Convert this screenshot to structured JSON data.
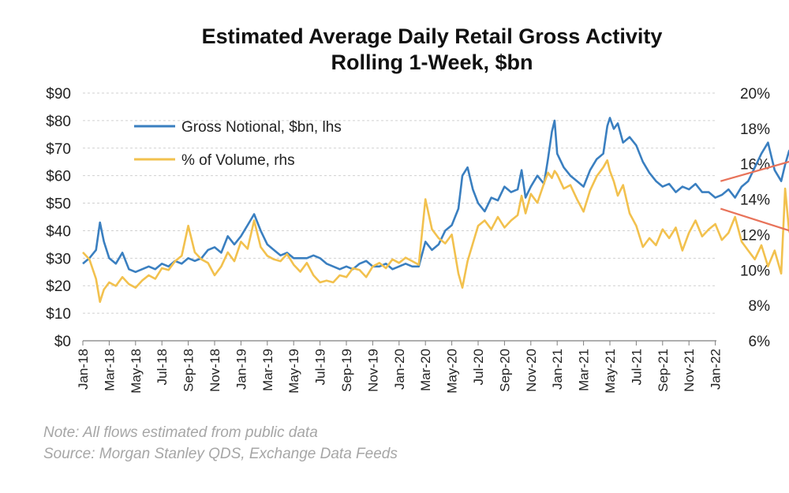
{
  "chart_data": {
    "type": "line",
    "title": "Estimated Average Daily Retail Gross Activity",
    "subtitle": "Rolling 1-Week, $bn",
    "left_axis": {
      "ylim": [
        0,
        90
      ],
      "ticks": [
        0,
        10,
        20,
        30,
        40,
        50,
        60,
        70,
        80,
        90
      ],
      "tick_labels": [
        "$0",
        "$10",
        "$20",
        "$30",
        "$40",
        "$50",
        "$60",
        "$70",
        "$80",
        "$90"
      ]
    },
    "right_axis": {
      "ylim": [
        6,
        20
      ],
      "ticks": [
        6,
        8,
        10,
        12,
        14,
        16,
        18,
        20
      ],
      "tick_labels": [
        "6%",
        "8%",
        "10%",
        "12%",
        "14%",
        "16%",
        "18%",
        "20%"
      ]
    },
    "x_ticks": [
      "Jan-18",
      "Mar-18",
      "May-18",
      "Jul-18",
      "Sep-18",
      "Nov-18",
      "Jan-19",
      "Mar-19",
      "May-19",
      "Jul-19",
      "Sep-19",
      "Nov-19",
      "Jan-20",
      "Mar-20",
      "May-20",
      "Jul-20",
      "Sep-20",
      "Nov-20",
      "Jan-21",
      "Mar-21",
      "May-21",
      "Jul-21",
      "Sep-21",
      "Nov-21",
      "Jan-22"
    ],
    "x_range_months": [
      0,
      49.2
    ],
    "grid": true,
    "legend_position": "top-left",
    "series": [
      {
        "name": "Gross Notional, $bn, lhs",
        "axis": "left",
        "color": "#3a7fc0",
        "points": [
          [
            0,
            28
          ],
          [
            0.5,
            30
          ],
          [
            1,
            33
          ],
          [
            1.3,
            43
          ],
          [
            1.6,
            36
          ],
          [
            2,
            30
          ],
          [
            2.5,
            28
          ],
          [
            3,
            32
          ],
          [
            3.5,
            26
          ],
          [
            4,
            25
          ],
          [
            4.5,
            26
          ],
          [
            5,
            27
          ],
          [
            5.5,
            26
          ],
          [
            6,
            28
          ],
          [
            6.5,
            27
          ],
          [
            7,
            29
          ],
          [
            7.5,
            28
          ],
          [
            8,
            30
          ],
          [
            8.5,
            29
          ],
          [
            9,
            30
          ],
          [
            9.5,
            33
          ],
          [
            10,
            34
          ],
          [
            10.5,
            32
          ],
          [
            11,
            38
          ],
          [
            11.5,
            35
          ],
          [
            12,
            38
          ],
          [
            12.5,
            42
          ],
          [
            13,
            46
          ],
          [
            13.5,
            40
          ],
          [
            14,
            35
          ],
          [
            14.5,
            33
          ],
          [
            15,
            31
          ],
          [
            15.5,
            32
          ],
          [
            16,
            30
          ],
          [
            16.5,
            30
          ],
          [
            17,
            30
          ],
          [
            17.5,
            31
          ],
          [
            18,
            30
          ],
          [
            18.5,
            28
          ],
          [
            19,
            27
          ],
          [
            19.5,
            26
          ],
          [
            20,
            27
          ],
          [
            20.5,
            26
          ],
          [
            21,
            28
          ],
          [
            21.5,
            29
          ],
          [
            22,
            27
          ],
          [
            22.5,
            27
          ],
          [
            23,
            28
          ],
          [
            23.5,
            26
          ],
          [
            24,
            27
          ],
          [
            24.5,
            28
          ],
          [
            25,
            27
          ],
          [
            25.5,
            27
          ],
          [
            26,
            36
          ],
          [
            26.5,
            33
          ],
          [
            27,
            35
          ],
          [
            27.5,
            40
          ],
          [
            28,
            42
          ],
          [
            28.5,
            48
          ],
          [
            28.8,
            60
          ],
          [
            29.2,
            63
          ],
          [
            29.6,
            55
          ],
          [
            30,
            50
          ],
          [
            30.5,
            47
          ],
          [
            31,
            52
          ],
          [
            31.5,
            51
          ],
          [
            32,
            56
          ],
          [
            32.5,
            54
          ],
          [
            33,
            55
          ],
          [
            33.3,
            62
          ],
          [
            33.6,
            52
          ],
          [
            34,
            56
          ],
          [
            34.5,
            60
          ],
          [
            35,
            57
          ],
          [
            35.3,
            66
          ],
          [
            35.6,
            76
          ],
          [
            35.8,
            80
          ],
          [
            36,
            68
          ],
          [
            36.5,
            63
          ],
          [
            37,
            60
          ],
          [
            37.5,
            58
          ],
          [
            38,
            56
          ],
          [
            38.5,
            62
          ],
          [
            39,
            66
          ],
          [
            39.5,
            68
          ],
          [
            39.8,
            78
          ],
          [
            40,
            81
          ],
          [
            40.3,
            77
          ],
          [
            40.6,
            79
          ],
          [
            41,
            72
          ],
          [
            41.5,
            74
          ],
          [
            42,
            71
          ],
          [
            42.5,
            65
          ],
          [
            43,
            61
          ],
          [
            43.5,
            58
          ],
          [
            44,
            56
          ],
          [
            44.5,
            57
          ],
          [
            45,
            54
          ],
          [
            45.5,
            56
          ],
          [
            46,
            55
          ],
          [
            46.5,
            57
          ],
          [
            47,
            54
          ],
          [
            47.5,
            54
          ],
          [
            48,
            52
          ],
          [
            48.5,
            53
          ],
          [
            49,
            55
          ],
          [
            49.5,
            52
          ],
          [
            50,
            56
          ],
          [
            50.5,
            58
          ],
          [
            51,
            63
          ],
          [
            51.5,
            68
          ],
          [
            52,
            72
          ],
          [
            52.5,
            62
          ],
          [
            53,
            58
          ],
          [
            53.3,
            64
          ],
          [
            53.6,
            69
          ],
          [
            54,
            71
          ],
          [
            54.3,
            72
          ]
        ]
      },
      {
        "name": "% of Volume, rhs",
        "axis": "right",
        "color": "#f2c14e",
        "points": [
          [
            0,
            11
          ],
          [
            0.5,
            10.6
          ],
          [
            1,
            9.5
          ],
          [
            1.3,
            8.2
          ],
          [
            1.6,
            8.9
          ],
          [
            2,
            9.3
          ],
          [
            2.5,
            9.1
          ],
          [
            3,
            9.6
          ],
          [
            3.5,
            9.2
          ],
          [
            4,
            9.0
          ],
          [
            4.5,
            9.4
          ],
          [
            5,
            9.7
          ],
          [
            5.5,
            9.5
          ],
          [
            6,
            10.1
          ],
          [
            6.5,
            10.0
          ],
          [
            7,
            10.5
          ],
          [
            7.5,
            10.8
          ],
          [
            8,
            12.5
          ],
          [
            8.5,
            11.0
          ],
          [
            9,
            10.6
          ],
          [
            9.5,
            10.4
          ],
          [
            10,
            9.7
          ],
          [
            10.5,
            10.2
          ],
          [
            11,
            11.0
          ],
          [
            11.5,
            10.5
          ],
          [
            12,
            11.6
          ],
          [
            12.5,
            11.2
          ],
          [
            13,
            12.8
          ],
          [
            13.5,
            11.3
          ],
          [
            14,
            10.8
          ],
          [
            14.5,
            10.6
          ],
          [
            15,
            10.5
          ],
          [
            15.5,
            10.9
          ],
          [
            16,
            10.3
          ],
          [
            16.5,
            9.9
          ],
          [
            17,
            10.4
          ],
          [
            17.5,
            9.7
          ],
          [
            18,
            9.3
          ],
          [
            18.5,
            9.4
          ],
          [
            19,
            9.3
          ],
          [
            19.5,
            9.7
          ],
          [
            20,
            9.6
          ],
          [
            20.5,
            10.1
          ],
          [
            21,
            10.0
          ],
          [
            21.5,
            9.6
          ],
          [
            22,
            10.2
          ],
          [
            22.5,
            10.4
          ],
          [
            23,
            10.1
          ],
          [
            23.5,
            10.6
          ],
          [
            24,
            10.4
          ],
          [
            24.5,
            10.7
          ],
          [
            25,
            10.5
          ],
          [
            25.5,
            10.3
          ],
          [
            26,
            14.0
          ],
          [
            26.5,
            12.3
          ],
          [
            27,
            11.8
          ],
          [
            27.5,
            11.5
          ],
          [
            28,
            12.0
          ],
          [
            28.5,
            9.8
          ],
          [
            28.8,
            9.0
          ],
          [
            29.2,
            10.5
          ],
          [
            29.6,
            11.5
          ],
          [
            30,
            12.5
          ],
          [
            30.5,
            12.8
          ],
          [
            31,
            12.3
          ],
          [
            31.5,
            13.0
          ],
          [
            32,
            12.4
          ],
          [
            32.5,
            12.8
          ],
          [
            33,
            13.1
          ],
          [
            33.3,
            14.2
          ],
          [
            33.6,
            13.2
          ],
          [
            34,
            14.3
          ],
          [
            34.5,
            13.8
          ],
          [
            35,
            14.9
          ],
          [
            35.3,
            15.5
          ],
          [
            35.6,
            15.2
          ],
          [
            35.8,
            15.6
          ],
          [
            36,
            15.4
          ],
          [
            36.5,
            14.6
          ],
          [
            37,
            14.8
          ],
          [
            37.5,
            14.0
          ],
          [
            38,
            13.3
          ],
          [
            38.5,
            14.5
          ],
          [
            39,
            15.3
          ],
          [
            39.5,
            15.8
          ],
          [
            39.8,
            16.2
          ],
          [
            40,
            15.6
          ],
          [
            40.3,
            15.0
          ],
          [
            40.6,
            14.2
          ],
          [
            41,
            14.8
          ],
          [
            41.5,
            13.2
          ],
          [
            42,
            12.5
          ],
          [
            42.5,
            11.3
          ],
          [
            43,
            11.8
          ],
          [
            43.5,
            11.4
          ],
          [
            44,
            12.3
          ],
          [
            44.5,
            11.8
          ],
          [
            45,
            12.4
          ],
          [
            45.5,
            11.1
          ],
          [
            46,
            12.1
          ],
          [
            46.5,
            12.8
          ],
          [
            47,
            11.9
          ],
          [
            47.5,
            12.3
          ],
          [
            48,
            12.6
          ],
          [
            48.5,
            11.7
          ],
          [
            49,
            12.1
          ],
          [
            49.5,
            13.0
          ],
          [
            50,
            11.6
          ],
          [
            50.5,
            11.1
          ],
          [
            51,
            10.6
          ],
          [
            51.5,
            11.4
          ],
          [
            52,
            10.2
          ],
          [
            52.5,
            11.1
          ],
          [
            53,
            9.8
          ],
          [
            53.3,
            14.6
          ],
          [
            53.6,
            12.2
          ],
          [
            54,
            11.5
          ],
          [
            54.3,
            10.6
          ]
        ]
      }
    ],
    "annotations": [
      {
        "type": "arrow",
        "color": "#e8735a",
        "from": [
          48.4,
          58
        ],
        "to": [
          54.3,
          66
        ],
        "axis": "left"
      },
      {
        "type": "arrow",
        "color": "#e8735a",
        "from": [
          48.4,
          48
        ],
        "to": [
          54.3,
          39
        ],
        "axis": "left"
      }
    ]
  },
  "legend": {
    "gross_notional": "Gross Notional, $bn, lhs",
    "pct_volume": "% of Volume, rhs"
  },
  "notes": {
    "note": "Note:  All flows estimated from public data",
    "source": "Source: Morgan Stanley QDS, Exchange Data Feeds"
  }
}
